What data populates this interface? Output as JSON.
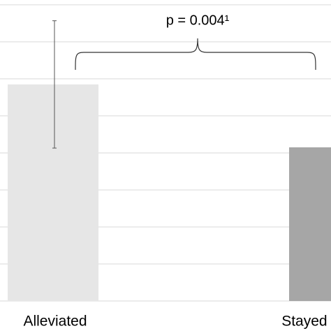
{
  "chart_data": {
    "type": "bar",
    "categories": [
      "Alleviated",
      "Stayed the same"
    ],
    "series": [
      {
        "values": [
          5.85,
          4.15
        ],
        "errors": [
          1.72,
          null
        ]
      }
    ],
    "colors": [
      "#e6e6e6",
      "#a6a6a6"
    ],
    "ylim": [
      0,
      8.13
    ],
    "yticks": [
      0,
      1,
      2,
      3,
      4,
      5,
      6,
      7,
      8
    ],
    "grid": true,
    "annotation": "p = 0.004¹"
  }
}
